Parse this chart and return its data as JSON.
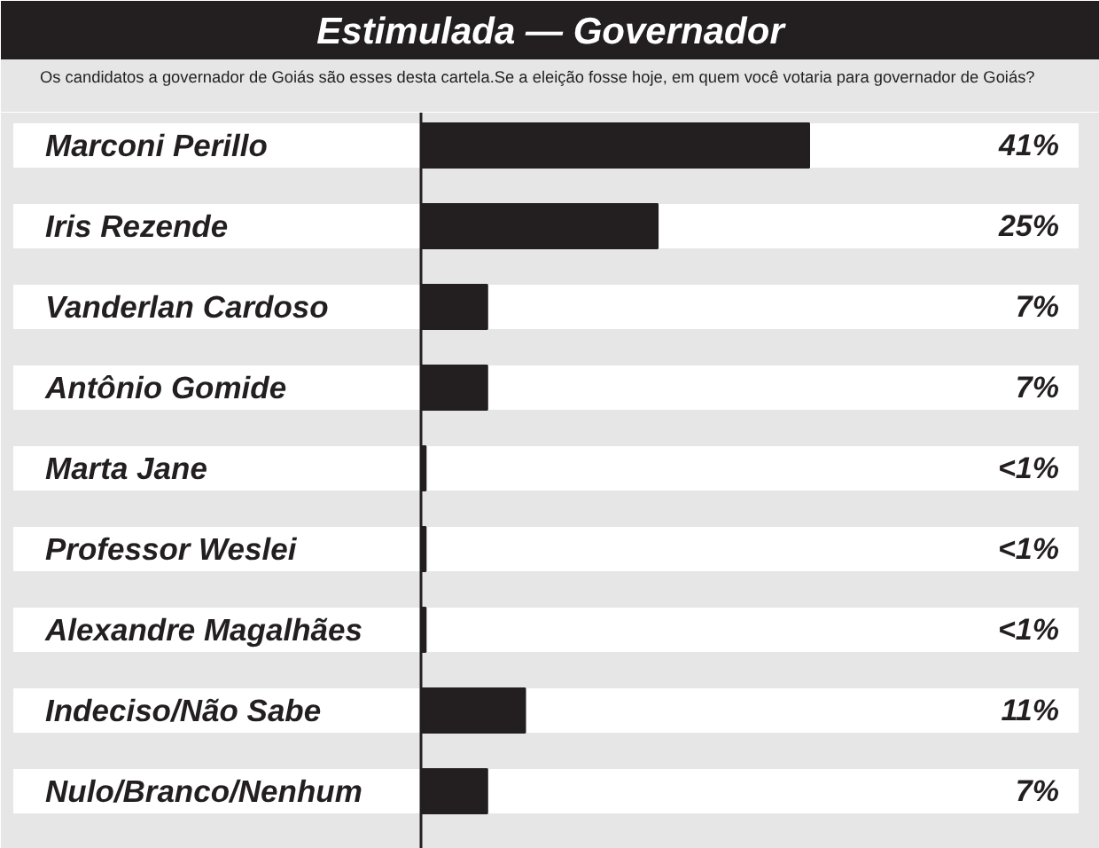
{
  "chart_data": {
    "type": "bar",
    "orientation": "horizontal",
    "title": "Estimulada — Governador",
    "subtitle": "Os candidatos a governador de Goiás são esses desta cartela.Se a eleição fosse hoje, em quem você votaria para governador de Goiás?",
    "categories": [
      "Marconi Perillo",
      "Iris Rezende",
      "Vanderlan Cardoso",
      "Antônio Gomide",
      "Marta Jane",
      "Professor Weslei",
      "Alexandre Magalhães",
      "Indeciso/Não Sabe",
      "Nulo/Branco/Nenhum"
    ],
    "values": [
      41,
      25,
      7,
      7,
      0.5,
      0.5,
      0.5,
      11,
      7
    ],
    "value_labels": [
      "41%",
      "25%",
      "7%",
      "7%",
      "<1%",
      "<1%",
      "<1%",
      "11%",
      "7%"
    ],
    "color": "#231f20",
    "tick_labels": "y"
  }
}
